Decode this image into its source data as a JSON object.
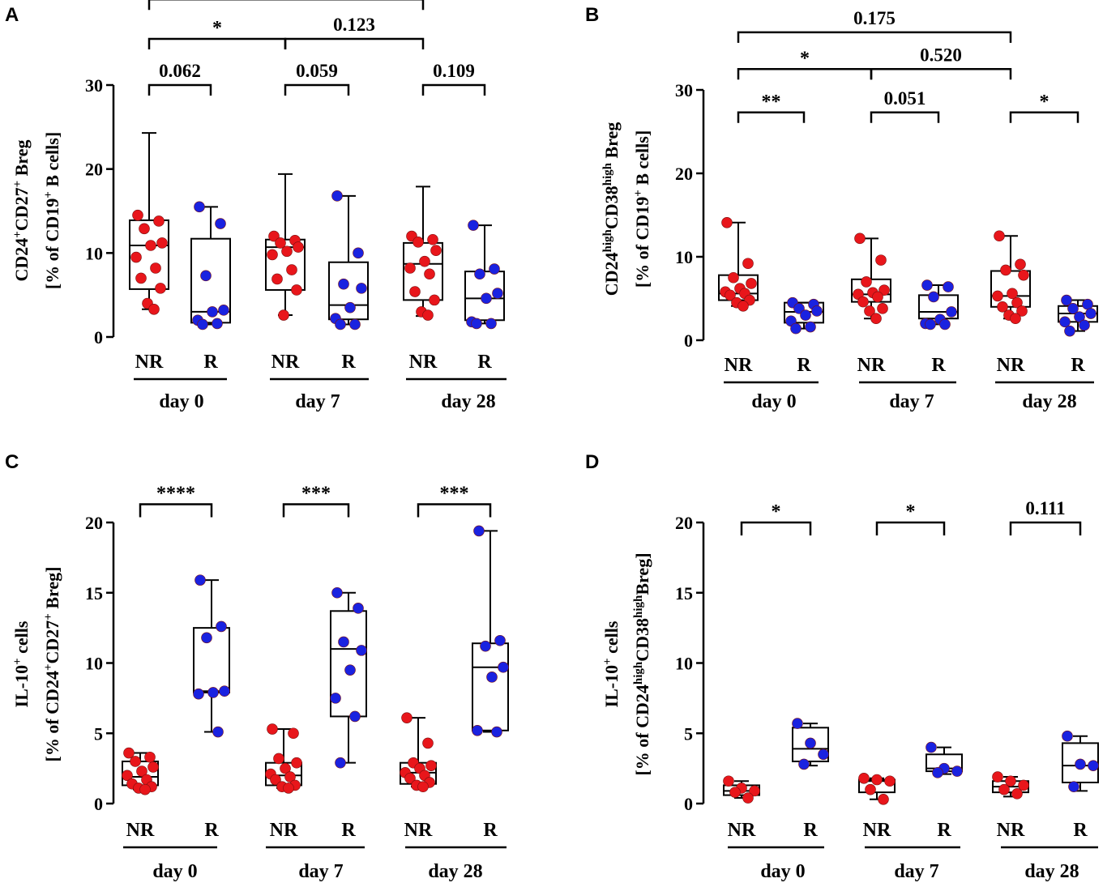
{
  "colors": {
    "nr": "#e8161b",
    "r": "#1a22e0",
    "line": "#000000"
  },
  "chart_data": [
    {
      "id": "A",
      "type": "box",
      "panel_label": "A",
      "ylabel": [
        "CD24",
        "+",
        "CD27",
        "+",
        " Breg"
      ],
      "ylabel2": [
        "[% of CD19",
        "+",
        " B cells]"
      ],
      "ylim": [
        0,
        30
      ],
      "yticks": [
        0,
        10,
        20,
        30
      ],
      "group_labels": [
        "NR",
        "R",
        "NR",
        "R",
        "NR",
        "R"
      ],
      "day_labels": [
        "day 0",
        "day 7",
        "day 28"
      ],
      "boxes": [
        {
          "group": "NR",
          "day": "day 0",
          "min": 3.3,
          "q1": 5.7,
          "median": 10.9,
          "q3": 13.9,
          "max": 24.3,
          "points": [
            14.5,
            13.8,
            12.9,
            11.2,
            10.9,
            9.5,
            8.2,
            7.0,
            5.8,
            4.0,
            3.3
          ]
        },
        {
          "group": "R",
          "day": "day 0",
          "min": 1.5,
          "q1": 1.7,
          "median": 3.0,
          "q3": 11.7,
          "max": 15.5,
          "points": [
            15.5,
            13.5,
            7.3,
            3.2,
            3.0,
            2.0,
            1.6,
            1.5
          ]
        },
        {
          "group": "NR",
          "day": "day 7",
          "min": 2.6,
          "q1": 5.6,
          "median": 10.7,
          "q3": 11.6,
          "max": 19.4,
          "points": [
            12.0,
            11.5,
            11.2,
            10.7,
            10.2,
            9.8,
            8.0,
            6.9,
            5.6,
            2.6
          ]
        },
        {
          "group": "R",
          "day": "day 7",
          "min": 1.5,
          "q1": 2.1,
          "median": 3.8,
          "q3": 8.9,
          "max": 16.8,
          "points": [
            16.8,
            10.0,
            6.3,
            5.8,
            3.5,
            2.2,
            1.5,
            1.5
          ]
        },
        {
          "group": "NR",
          "day": "day 28",
          "min": 2.5,
          "q1": 4.4,
          "median": 8.7,
          "q3": 11.2,
          "max": 17.9,
          "points": [
            12.0,
            11.6,
            11.3,
            10.3,
            9.0,
            8.2,
            7.5,
            5.4,
            4.4,
            3.0,
            2.6
          ]
        },
        {
          "group": "R",
          "day": "day 28",
          "min": 1.6,
          "q1": 2.0,
          "median": 4.6,
          "q3": 7.8,
          "max": 13.3,
          "points": [
            13.3,
            8.1,
            7.5,
            5.2,
            4.6,
            1.8,
            1.6,
            1.6
          ]
        }
      ],
      "brackets": [
        {
          "from": 0,
          "to": 1,
          "value": 30,
          "label": "0.062"
        },
        {
          "from": 2,
          "to": 3,
          "value": 30,
          "label": "0.059"
        },
        {
          "from": 4,
          "to": 5,
          "value": 30,
          "label": "0.109"
        },
        {
          "from": 0,
          "to": 2,
          "value": 35.5,
          "label": "*"
        },
        {
          "from": 2,
          "to": 4,
          "value": 35.5,
          "label": "0.123"
        },
        {
          "from": 0,
          "to": 4,
          "value": 40.2,
          "label": "*"
        }
      ]
    },
    {
      "id": "B",
      "type": "box",
      "panel_label": "B",
      "ylabel": [
        "CD24",
        "high",
        "CD38",
        "high",
        " Breg"
      ],
      "ylabel2": [
        "[% of CD19",
        "+",
        " B cells]"
      ],
      "ylim": [
        0,
        30
      ],
      "yticks": [
        0,
        10,
        20,
        30
      ],
      "group_labels": [
        "NR",
        "R",
        "NR",
        "R",
        "NR",
        "R"
      ],
      "day_labels": [
        "day 0",
        "day 7",
        "day 28"
      ],
      "boxes": [
        {
          "group": "NR",
          "day": "day 0",
          "min": 4.1,
          "q1": 4.8,
          "median": 5.6,
          "q3": 7.8,
          "max": 14.1,
          "points": [
            14.1,
            9.2,
            7.5,
            6.8,
            6.2,
            5.8,
            5.6,
            5.4,
            4.8,
            4.5,
            4.1
          ]
        },
        {
          "group": "R",
          "day": "day 0",
          "min": 1.4,
          "q1": 2.1,
          "median": 3.4,
          "q3": 4.5,
          "max": 4.5,
          "points": [
            4.5,
            4.3,
            3.8,
            3.5,
            3.0,
            2.3,
            1.6,
            1.4
          ]
        },
        {
          "group": "NR",
          "day": "day 7",
          "min": 2.6,
          "q1": 4.6,
          "median": 5.5,
          "q3": 7.3,
          "max": 12.2,
          "points": [
            12.2,
            9.6,
            7.0,
            6.0,
            5.7,
            5.5,
            5.2,
            4.6,
            3.8,
            3.5,
            2.6
          ]
        },
        {
          "group": "R",
          "day": "day 7",
          "min": 1.9,
          "q1": 2.6,
          "median": 3.4,
          "q3": 5.4,
          "max": 6.6,
          "points": [
            6.6,
            6.4,
            5.2,
            3.4,
            2.5,
            2.0,
            1.9,
            1.9
          ]
        },
        {
          "group": "NR",
          "day": "day 28",
          "min": 2.6,
          "q1": 4.0,
          "median": 5.3,
          "q3": 8.3,
          "max": 12.5,
          "points": [
            12.5,
            9.1,
            8.4,
            7.8,
            5.6,
            5.3,
            4.5,
            4.0,
            3.5,
            3.0,
            2.6
          ]
        },
        {
          "group": "R",
          "day": "day 28",
          "min": 1.1,
          "q1": 2.2,
          "median": 3.2,
          "q3": 4.1,
          "max": 4.8,
          "points": [
            4.8,
            4.3,
            3.8,
            3.2,
            2.8,
            2.2,
            1.8,
            1.1
          ]
        }
      ],
      "brackets": [
        {
          "from": 0,
          "to": 1,
          "value": 27.3,
          "label": "**"
        },
        {
          "from": 2,
          "to": 3,
          "value": 27.3,
          "label": "0.051"
        },
        {
          "from": 4,
          "to": 5,
          "value": 27.3,
          "label": "*"
        },
        {
          "from": 0,
          "to": 2,
          "value": 32.5,
          "label": "*"
        },
        {
          "from": 2,
          "to": 4,
          "value": 32.5,
          "label": "0.520"
        },
        {
          "from": 0,
          "to": 4,
          "value": 36.9,
          "label": "0.175"
        }
      ]
    },
    {
      "id": "C",
      "type": "box",
      "panel_label": "C",
      "ylabel": [
        "IL-10",
        "+",
        " cells"
      ],
      "ylabel2": [
        "[% of CD24",
        "+",
        "CD27",
        "+",
        " Breg]"
      ],
      "ylim": [
        0,
        20
      ],
      "yticks": [
        0,
        5,
        10,
        15,
        20
      ],
      "group_labels": [
        "NR",
        "R",
        "NR",
        "R",
        "NR",
        "R"
      ],
      "day_labels": [
        "day 0",
        "day 7",
        "day 28"
      ],
      "boxes": [
        {
          "group": "NR",
          "day": "day 0",
          "min": 1.0,
          "q1": 1.3,
          "median": 1.9,
          "q3": 3.0,
          "max": 3.6,
          "points": [
            3.6,
            3.3,
            3.0,
            2.6,
            2.3,
            2.0,
            1.7,
            1.4,
            1.2,
            1.1,
            1.0
          ]
        },
        {
          "group": "R",
          "day": "day 0",
          "min": 5.1,
          "q1": 7.9,
          "median": 8.0,
          "q3": 12.5,
          "max": 15.9,
          "points": [
            15.9,
            12.6,
            11.8,
            8.0,
            7.9,
            7.8,
            5.1
          ]
        },
        {
          "group": "NR",
          "day": "day 7",
          "min": 1.1,
          "q1": 1.3,
          "median": 2.0,
          "q3": 2.9,
          "max": 5.3,
          "points": [
            5.3,
            5.0,
            3.2,
            2.9,
            2.5,
            2.1,
            1.9,
            1.7,
            1.3,
            1.2,
            1.1
          ]
        },
        {
          "group": "R",
          "day": "day 7",
          "min": 2.9,
          "q1": 6.2,
          "median": 11.0,
          "q3": 13.7,
          "max": 15.0,
          "points": [
            15.0,
            13.9,
            11.5,
            10.9,
            9.5,
            7.5,
            6.2,
            2.9
          ]
        },
        {
          "group": "NR",
          "day": "day 28",
          "min": 1.2,
          "q1": 1.4,
          "median": 2.2,
          "q3": 2.9,
          "max": 6.1,
          "points": [
            6.1,
            4.3,
            2.9,
            2.7,
            2.5,
            2.2,
            2.0,
            1.8,
            1.5,
            1.3,
            1.2
          ]
        },
        {
          "group": "R",
          "day": "day 28",
          "min": 5.1,
          "q1": 5.2,
          "median": 9.7,
          "q3": 11.4,
          "max": 19.4,
          "points": [
            19.4,
            11.6,
            11.2,
            9.7,
            9.0,
            5.2,
            5.1
          ]
        }
      ],
      "brackets": [
        {
          "from": 0,
          "to": 1,
          "value": 21.3,
          "label": "****"
        },
        {
          "from": 2,
          "to": 3,
          "value": 21.3,
          "label": "***"
        },
        {
          "from": 4,
          "to": 5,
          "value": 21.3,
          "label": "***"
        }
      ]
    },
    {
      "id": "D",
      "type": "box",
      "panel_label": "D",
      "ylabel": [
        "IL-10",
        "+",
        " cells"
      ],
      "ylabel2": [
        "[% of CD24",
        "high",
        "CD38",
        "high",
        "Breg]"
      ],
      "ylim": [
        0,
        20
      ],
      "yticks": [
        0,
        5,
        10,
        15,
        20
      ],
      "group_labels": [
        "NR",
        "R",
        "NR",
        "R",
        "NR",
        "R"
      ],
      "day_labels": [
        "day 0",
        "day 7",
        "day 28"
      ],
      "boxes": [
        {
          "group": "NR",
          "day": "day 0",
          "min": 0.4,
          "q1": 0.6,
          "median": 0.9,
          "q3": 1.3,
          "max": 1.6,
          "points": [
            1.6,
            1.1,
            0.9,
            0.8,
            0.4
          ]
        },
        {
          "group": "R",
          "day": "day 0",
          "min": 2.7,
          "q1": 3.0,
          "median": 3.9,
          "q3": 5.4,
          "max": 5.7,
          "points": [
            5.7,
            4.3,
            3.5,
            2.8
          ]
        },
        {
          "group": "NR",
          "day": "day 7",
          "min": 0.3,
          "q1": 0.8,
          "median": 1.6,
          "q3": 1.7,
          "max": 1.8,
          "points": [
            1.8,
            1.7,
            1.6,
            1.0,
            0.3
          ]
        },
        {
          "group": "R",
          "day": "day 7",
          "min": 2.1,
          "q1": 2.3,
          "median": 2.5,
          "q3": 3.5,
          "max": 4.0,
          "points": [
            4.0,
            2.5,
            2.3,
            2.2
          ]
        },
        {
          "group": "NR",
          "day": "day 28",
          "min": 0.5,
          "q1": 0.8,
          "median": 1.2,
          "q3": 1.6,
          "max": 1.9,
          "points": [
            1.9,
            1.6,
            1.3,
            1.0,
            0.7
          ]
        },
        {
          "group": "R",
          "day": "day 28",
          "min": 0.9,
          "q1": 1.5,
          "median": 2.7,
          "q3": 4.3,
          "max": 4.8,
          "points": [
            4.8,
            2.8,
            2.7,
            1.2
          ]
        }
      ],
      "brackets": [
        {
          "from": 0,
          "to": 1,
          "value": 20.0,
          "label": "*"
        },
        {
          "from": 2,
          "to": 3,
          "value": 20.0,
          "label": "*"
        },
        {
          "from": 4,
          "to": 5,
          "value": 20.0,
          "label": "0.111"
        }
      ]
    }
  ]
}
